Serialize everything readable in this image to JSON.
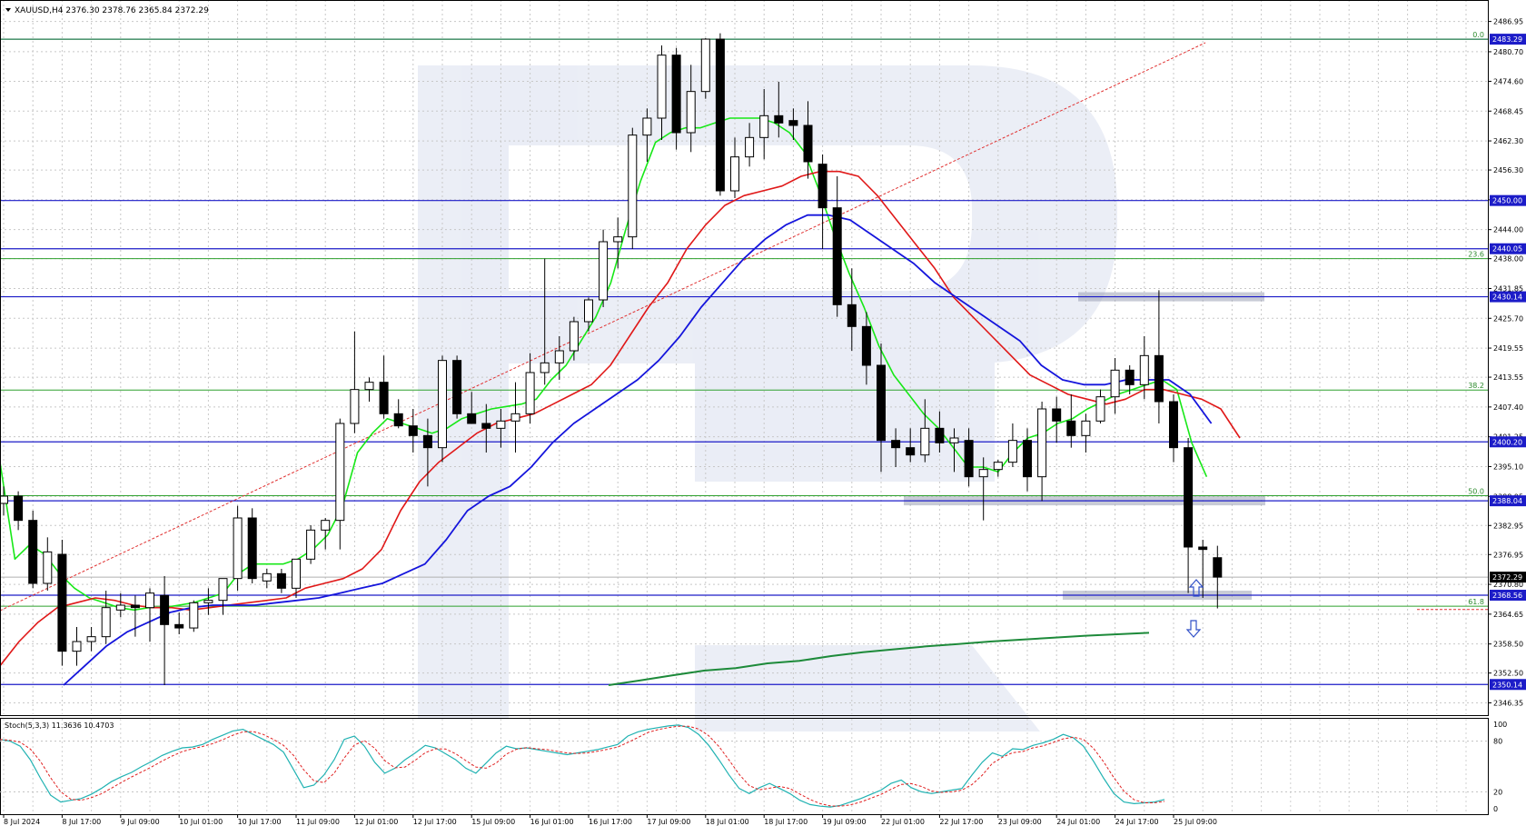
{
  "header": {
    "symbol_info": "XAUUSD,H4  2376.30 2378.76 2365.84 2372.29"
  },
  "price_axis": {
    "range": [
      2344.0,
      2491.0
    ],
    "ticks": [
      "2486.95",
      "2480.70",
      "2474.60",
      "2468.45",
      "2462.30",
      "2456.30",
      "2450.15",
      "2444.00",
      "2438.00",
      "2431.85",
      "2425.70",
      "2419.55",
      "2413.55",
      "2407.40",
      "2401.25",
      "2395.10",
      "2388.95",
      "2382.95",
      "2376.95",
      "2370.80",
      "2364.65",
      "2358.50",
      "2352.50",
      "2346.35"
    ]
  },
  "levels": [
    {
      "price": 2483.29,
      "label": "2483.29",
      "color": "#1c1cc8"
    },
    {
      "price": 2450.0,
      "label": "2450.00",
      "color": "#1c1cc8"
    },
    {
      "price": 2440.05,
      "label": "2440.05",
      "color": "#1c1cc8"
    },
    {
      "price": 2430.14,
      "label": "2430.14",
      "color": "#1c1cc8"
    },
    {
      "price": 2400.2,
      "label": "2400.20",
      "color": "#1c1cc8"
    },
    {
      "price": 2388.04,
      "label": "2388.04",
      "color": "#1c1cc8"
    },
    {
      "price": 2368.56,
      "label": "2368.56",
      "color": "#1c1cc8"
    },
    {
      "price": 2350.14,
      "label": "2350.14",
      "color": "#1c1cc8"
    }
  ],
  "current_price": {
    "price": 2372.29,
    "label": "2372.29"
  },
  "fibonacci": [
    {
      "level": "0.0",
      "price": 2483.29
    },
    {
      "level": "23.6",
      "price": 2438.0
    },
    {
      "level": "38.2",
      "price": 2410.9
    },
    {
      "level": "50.0",
      "price": 2389.1
    },
    {
      "level": "61.8",
      "price": 2366.3
    }
  ],
  "time_axis": [
    "8 Jul 2024",
    "8 Jul 17:00",
    "9 Jul 09:00",
    "10 Jul 01:00",
    "10 Jul 17:00",
    "11 Jul 09:00",
    "12 Jul 01:00",
    "12 Jul 17:00",
    "15 Jul 09:00",
    "16 Jul 01:00",
    "16 Jul 17:00",
    "17 Jul 09:00",
    "18 Jul 01:00",
    "18 Jul 17:00",
    "19 Jul 09:00",
    "22 Jul 01:00",
    "22 Jul 17:00",
    "23 Jul 09:00",
    "24 Jul 01:00",
    "24 Jul 17:00",
    "25 Jul 09:00"
  ],
  "stochastic": {
    "label": "Stoch(5,3,3) 11.3636 10.4703",
    "ticks": [
      "100",
      "80",
      "20",
      "0"
    ],
    "main": [
      82,
      80,
      74,
      58,
      36,
      16,
      8,
      10,
      12,
      17,
      24,
      32,
      38,
      43,
      50,
      56,
      63,
      68,
      72,
      73,
      76,
      82,
      87,
      92,
      94,
      88,
      82,
      76,
      67,
      46,
      25,
      28,
      40,
      58,
      82,
      86,
      74,
      55,
      42,
      48,
      58,
      66,
      75,
      72,
      65,
      58,
      48,
      42,
      54,
      66,
      74,
      71,
      72,
      70,
      68,
      66,
      64,
      66,
      68,
      70,
      73,
      76,
      86,
      91,
      94,
      96,
      98,
      99,
      96,
      88,
      75,
      58,
      40,
      24,
      18,
      25,
      30,
      24,
      18,
      10,
      5,
      3,
      2,
      4,
      8,
      12,
      17,
      22,
      30,
      34,
      25,
      20,
      18,
      20,
      22,
      24,
      40,
      55,
      66,
      62,
      71,
      70,
      75,
      78,
      82,
      88,
      84,
      74,
      56,
      36,
      18,
      8,
      6,
      7,
      8,
      11
    ]
  },
  "chart_data": {
    "type": "candlestick",
    "symbol": "XAUUSD",
    "timeframe": "H4",
    "ohlc": [
      [
        2387.5,
        2391.0,
        2385.0,
        2389.0
      ],
      [
        2389.0,
        2390.0,
        2382.0,
        2384.0
      ],
      [
        2384.0,
        2386.0,
        2370.0,
        2371.0
      ],
      [
        2371.0,
        2380.5,
        2369.5,
        2377.5
      ],
      [
        2377.0,
        2380.0,
        2354.0,
        2357.0
      ],
      [
        2357.0,
        2362.0,
        2354.0,
        2359.0
      ],
      [
        2359.0,
        2362.0,
        2357.0,
        2360.0
      ],
      [
        2360.0,
        2369.5,
        2358.5,
        2366.0
      ],
      [
        2365.5,
        2369.0,
        2364.0,
        2366.5
      ],
      [
        2366.5,
        2368.5,
        2360.0,
        2366.0
      ],
      [
        2366.0,
        2370.0,
        2359.0,
        2369.0
      ],
      [
        2368.5,
        2372.5,
        2350.0,
        2362.5
      ],
      [
        2362.5,
        2365.0,
        2360.5,
        2361.8
      ],
      [
        2361.8,
        2367.5,
        2361.0,
        2367.0
      ],
      [
        2367.0,
        2370.0,
        2364.5,
        2367.5
      ],
      [
        2367.5,
        2372.0,
        2364.5,
        2372.0
      ],
      [
        2372.0,
        2387.0,
        2369.5,
        2384.5
      ],
      [
        2384.5,
        2386.5,
        2371.0,
        2372.0
      ],
      [
        2371.5,
        2374.0,
        2370.0,
        2373.0
      ],
      [
        2373.0,
        2374.0,
        2369.0,
        2370.0
      ],
      [
        2370.0,
        2376.0,
        2368.0,
        2376.0
      ],
      [
        2376.0,
        2383.0,
        2375.0,
        2382.0
      ],
      [
        2382.0,
        2384.5,
        2378.0,
        2384.0
      ],
      [
        2384.0,
        2405.0,
        2378.0,
        2404.0
      ],
      [
        2404.0,
        2423.0,
        2402.0,
        2411.0
      ],
      [
        2411.0,
        2413.5,
        2408.5,
        2412.5
      ],
      [
        2412.5,
        2418.0,
        2405.0,
        2406.0
      ],
      [
        2406.0,
        2409.0,
        2403.0,
        2403.5
      ],
      [
        2403.5,
        2407.0,
        2398.0,
        2401.5
      ],
      [
        2401.5,
        2405.0,
        2391.0,
        2399.0
      ],
      [
        2399.0,
        2418.0,
        2396.0,
        2417.0
      ],
      [
        2417.0,
        2418.0,
        2405.0,
        2406.0
      ],
      [
        2406.0,
        2410.5,
        2404.5,
        2404.0
      ],
      [
        2404.0,
        2408.0,
        2398.0,
        2403.0
      ],
      [
        2403.0,
        2407.0,
        2399.0,
        2404.5
      ],
      [
        2404.5,
        2412.5,
        2398.0,
        2406.0
      ],
      [
        2406.0,
        2418.5,
        2404.0,
        2414.5
      ],
      [
        2414.5,
        2438.0,
        2412.0,
        2416.5
      ],
      [
        2416.5,
        2422.0,
        2413.0,
        2419.0
      ],
      [
        2419.0,
        2426.0,
        2417.0,
        2425.0
      ],
      [
        2425.0,
        2430.0,
        2423.0,
        2429.5
      ],
      [
        2429.5,
        2444.0,
        2428.0,
        2441.5
      ],
      [
        2441.5,
        2446.5,
        2436.0,
        2442.5
      ],
      [
        2442.5,
        2465.0,
        2440.0,
        2463.5
      ],
      [
        2463.5,
        2469.0,
        2458.0,
        2467.0
      ],
      [
        2467.0,
        2482.0,
        2462.5,
        2480.0
      ],
      [
        2480.0,
        2481.5,
        2460.5,
        2464.0
      ],
      [
        2464.0,
        2478.0,
        2460.0,
        2472.5
      ],
      [
        2472.5,
        2483.5,
        2471.0,
        2483.3
      ],
      [
        2483.3,
        2484.5,
        2451.0,
        2452.0
      ],
      [
        2452.0,
        2463.0,
        2450.5,
        2459.0
      ],
      [
        2459.0,
        2466.0,
        2457.0,
        2463.0
      ],
      [
        2463.0,
        2473.0,
        2458.5,
        2467.5
      ],
      [
        2467.5,
        2474.5,
        2463.0,
        2466.0
      ],
      [
        2466.5,
        2469.0,
        2462.5,
        2465.5
      ],
      [
        2465.5,
        2470.5,
        2454.5,
        2458.0
      ],
      [
        2457.5,
        2459.5,
        2440.0,
        2448.5
      ],
      [
        2448.5,
        2455.0,
        2426.0,
        2428.5
      ],
      [
        2428.5,
        2436.0,
        2419.0,
        2424.0
      ],
      [
        2424.0,
        2427.0,
        2412.0,
        2416.0
      ],
      [
        2416.0,
        2420.5,
        2394.0,
        2400.5
      ],
      [
        2400.5,
        2403.0,
        2395.0,
        2399.0
      ],
      [
        2399.0,
        2403.0,
        2396.0,
        2397.5
      ],
      [
        2397.5,
        2409.0,
        2396.0,
        2403.0
      ],
      [
        2403.0,
        2406.5,
        2398.0,
        2400.0
      ],
      [
        2400.0,
        2403.0,
        2394.0,
        2401.0
      ],
      [
        2400.5,
        2403.0,
        2391.0,
        2393.0
      ],
      [
        2393.0,
        2397.0,
        2384.0,
        2394.5
      ],
      [
        2394.5,
        2396.5,
        2393.0,
        2396.0
      ],
      [
        2396.0,
        2404.0,
        2395.0,
        2400.5
      ],
      [
        2400.5,
        2403.0,
        2390.0,
        2393.0
      ],
      [
        2393.0,
        2408.5,
        2388.0,
        2407.0
      ],
      [
        2407.0,
        2409.5,
        2400.0,
        2404.5
      ],
      [
        2404.5,
        2410.0,
        2399.0,
        2401.5
      ],
      [
        2401.5,
        2406.0,
        2398.0,
        2404.5
      ],
      [
        2404.5,
        2411.0,
        2404.0,
        2409.5
      ],
      [
        2409.5,
        2417.5,
        2406.0,
        2415.0
      ],
      [
        2415.0,
        2416.0,
        2410.0,
        2412.0
      ],
      [
        2412.0,
        2422.0,
        2409.0,
        2418.0
      ],
      [
        2418.0,
        2431.5,
        2404.0,
        2408.5
      ],
      [
        2408.5,
        2410.0,
        2396.0,
        2399.0
      ],
      [
        2399.0,
        2401.0,
        2369.0,
        2378.5
      ],
      [
        2378.5,
        2380.0,
        2368.0,
        2378.0
      ],
      [
        2376.3,
        2378.76,
        2365.84,
        2372.29
      ]
    ],
    "ma_fast_green": [
      2396,
      2376,
      2379,
      2377,
      2373,
      2370,
      2368,
      2367,
      2366,
      2365.5,
      2366,
      2366,
      2366.5,
      2367,
      2368,
      2369,
      2373,
      2375,
      2375,
      2375,
      2376,
      2378,
      2381,
      2387,
      2398,
      2402,
      2405,
      2404,
      2403,
      2402,
      2403,
      2405,
      2406,
      2407,
      2407.5,
      2408,
      2409,
      2413,
      2416,
      2421,
      2426,
      2433,
      2444,
      2454,
      2462,
      2464,
      2465,
      2465,
      2466,
      2467,
      2467,
      2467,
      2466,
      2464,
      2460,
      2452,
      2443,
      2435,
      2428,
      2420,
      2414,
      2410,
      2406,
      2403,
      2399,
      2395,
      2395,
      2394,
      2398,
      2401,
      2402,
      2404,
      2405,
      2407,
      2408.5,
      2410,
      2411,
      2412,
      2413,
      2411,
      2400,
      2393
    ],
    "ma_mid_red": [
      2354,
      2359,
      2363,
      2366,
      2367,
      2368,
      2367.5,
      2366.5,
      2366,
      2366,
      2365.5,
      2366,
      2366.5,
      2367,
      2367.5,
      2368,
      2370,
      2371,
      2372,
      2374,
      2378,
      2386,
      2392,
      2396,
      2399,
      2402,
      2404,
      2405,
      2406,
      2408,
      2410,
      2412,
      2416,
      2422,
      2428,
      2433,
      2440,
      2445,
      2449,
      2451,
      2452,
      2453,
      2455,
      2456,
      2456,
      2455,
      2451,
      2446,
      2441,
      2436,
      2430,
      2426,
      2422,
      2418,
      2414,
      2412,
      2410,
      2409,
      2408,
      2409,
      2411,
      2411,
      2410,
      2409,
      2407,
      2401
    ],
    "ma_slow_blue": [
      2350,
      2354,
      2358,
      2361,
      2363,
      2365,
      2366,
      2366.5,
      2366.5,
      2366.5,
      2367,
      2367.5,
      2368,
      2369,
      2370,
      2371,
      2373,
      2375,
      2380,
      2386,
      2389,
      2391,
      2395,
      2400,
      2404,
      2407,
      2410,
      2413,
      2417,
      2422,
      2428,
      2433,
      2438,
      2442,
      2445,
      2447,
      2447,
      2446,
      2443,
      2440,
      2437,
      2433,
      2430,
      2427,
      2424,
      2421,
      2416,
      2413,
      2412,
      2412,
      2413,
      2413,
      2413,
      2410,
      2404
    ],
    "ma_200_darkgreen": [
      2350,
      2351,
      2352,
      2353,
      2353.5,
      2354.5,
      2355,
      2356,
      2356.8,
      2357.4,
      2358,
      2358.5,
      2359,
      2359.4,
      2359.8,
      2360.2,
      2360.5,
      2360.8
    ]
  }
}
